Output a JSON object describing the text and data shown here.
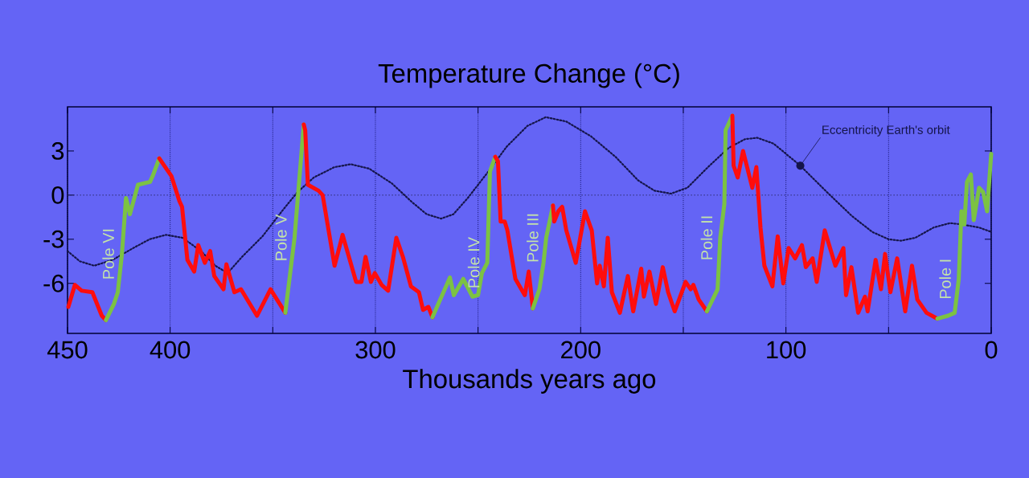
{
  "chart_data": {
    "type": "line",
    "title": "Temperature Change (°C)",
    "xlabel": "Thousands years ago",
    "xlim": [
      450,
      0
    ],
    "ylim": [
      -9.4,
      6
    ],
    "xticks": [
      450,
      400,
      {
        "value": 350,
        "label": null
      },
      300,
      {
        "value": 250,
        "label": null
      },
      200,
      {
        "value": 150,
        "label": null
      },
      100,
      {
        "value": 50,
        "label": null
      },
      0
    ],
    "yticks": [
      3,
      0,
      -3,
      -6
    ],
    "grid": "x",
    "ref_lines": [
      {
        "axis": "y",
        "value": 0,
        "color": "#2a2a6a",
        "line_style": "dotted"
      }
    ],
    "series": [
      {
        "name": "Eccentricity Earth's orbit",
        "color": "#15154a",
        "line_style": "dotted",
        "x": [
          450,
          444,
          437,
          428,
          418,
          410,
          402,
          394,
          385,
          378,
          372,
          365,
          355,
          345,
          338,
          330,
          320,
          312,
          303,
          292,
          282,
          275,
          268,
          262,
          255,
          245,
          236,
          226,
          217,
          207,
          195,
          183,
          172,
          164,
          156,
          148,
          138,
          128,
          120,
          114,
          106,
          93,
          80,
          68,
          58,
          50,
          44,
          37,
          28,
          20,
          14,
          6,
          0
        ],
        "values": [
          -3.8,
          -4.5,
          -4.8,
          -4.4,
          -3.6,
          -3.0,
          -2.7,
          -2.9,
          -3.8,
          -4.8,
          -5.3,
          -4.2,
          -2.8,
          -1.0,
          0.2,
          1.2,
          1.9,
          2.1,
          1.8,
          0.8,
          -0.5,
          -1.3,
          -1.6,
          -1.3,
          -0.2,
          1.6,
          3.3,
          4.7,
          5.3,
          5.0,
          4.0,
          2.6,
          1.0,
          0.3,
          0.1,
          0.5,
          1.9,
          3.2,
          3.8,
          3.9,
          3.5,
          2.0,
          0.2,
          -1.4,
          -2.5,
          -3.0,
          -3.1,
          -2.9,
          -2.2,
          -1.9,
          -2.0,
          -2.2,
          -2.5
        ]
      },
      {
        "color": "#ff0d0d",
        "x": [
          449.6,
          446.4,
          443.1,
          437.9,
          433.3,
          431.3
        ],
        "values": [
          -7.6,
          -6.1,
          -6.5,
          -6.6,
          -8.2,
          -8.5
        ]
      },
      {
        "color": "#7cc243",
        "x": [
          431.3,
          427.4,
          425.5,
          423.5,
          421.5,
          419.6,
          415.7,
          409.8,
          408.5,
          405.3
        ],
        "values": [
          -8.5,
          -7.4,
          -6.6,
          -4.0,
          -0.2,
          -1.3,
          0.7,
          0.9,
          1.3,
          2.5
        ]
      },
      {
        "color": "#ff0d0d",
        "x": [
          405.3,
          399.4,
          395.5,
          394.2,
          391.6,
          388.3,
          386.3,
          383.1,
          380.5,
          378.5,
          374,
          372.6,
          368.7,
          365.5,
          357.7,
          351.1,
          343.9
        ],
        "values": [
          2.5,
          1.3,
          -0.4,
          -0.8,
          -4.4,
          -5.2,
          -3.4,
          -4.6,
          -3.8,
          -5.5,
          -6.4,
          -4.7,
          -6.6,
          -6.4,
          -8.2,
          -6.4,
          -8.0
        ]
      },
      {
        "color": "#7cc243",
        "x": [
          343.9,
          339.4,
          334.9
        ],
        "values": [
          -8.0,
          -2.9,
          4.8
        ]
      },
      {
        "color": "#ff0d0d",
        "x": [
          334.9,
          334.2,
          332.9,
          327.7,
          325.7,
          319.9,
          316,
          309.4,
          306.8,
          304.8,
          302.2,
          300.3,
          297,
          293.8,
          289.8,
          286.6,
          282.7,
          278.8,
          276.8,
          274.2,
          272.2
        ],
        "values": [
          4.8,
          4.4,
          0.7,
          0.3,
          0.0,
          -4.8,
          -2.7,
          -5.9,
          -5.9,
          -4.2,
          -5.9,
          -5.3,
          -6.1,
          -6.5,
          -2.9,
          -4.2,
          -6.2,
          -6.6,
          -7.8,
          -7.6,
          -8.3
        ]
      },
      {
        "color": "#7cc243",
        "x": [
          272.2,
          263.7,
          261.8,
          257.2,
          252.7,
          250,
          248.1,
          245.5,
          244.2,
          241.6
        ],
        "values": [
          -8.3,
          -5.6,
          -6.8,
          -5.7,
          -6.9,
          -6.8,
          -5.3,
          -4.6,
          1.6,
          2.6
        ]
      },
      {
        "color": "#ff0d0d",
        "x": [
          241.6,
          240.3,
          239,
          237,
          235.7,
          231.8,
          227.2,
          225.3,
          223.3
        ],
        "values": [
          2.6,
          2.3,
          -1.8,
          -1.8,
          -2.4,
          -5.7,
          -6.8,
          -5.2,
          -7.7
        ]
      },
      {
        "color": "#7cc243",
        "x": [
          223.3,
          220.1,
          218.1,
          216.8,
          213.5
        ],
        "values": [
          -7.7,
          -6.4,
          -4.6,
          -2.9,
          -0.7
        ]
      },
      {
        "color": "#ff0d0d",
        "x": [
          213.5,
          212.9,
          210.9,
          209,
          207,
          202.4,
          197.9,
          194.6,
          192,
          190.7,
          188.7,
          186.8,
          184.8,
          180.9,
          177,
          174.4,
          170.5,
          169.2,
          166.5,
          163.3,
          160,
          157.4,
          154.2,
          148.9,
          146.4,
          145.1,
          142.5,
          138.5
        ],
        "values": [
          -0.7,
          -1.8,
          -1.1,
          -0.8,
          -2.4,
          -4.6,
          -1.1,
          -2.4,
          -6.0,
          -4.8,
          -6.2,
          -2.9,
          -6.6,
          -8.0,
          -5.5,
          -7.9,
          -5.0,
          -6.9,
          -5.2,
          -7.4,
          -4.9,
          -6.6,
          -7.9,
          -5.9,
          -6.4,
          -6.1,
          -7.1,
          -7.9
        ]
      },
      {
        "color": "#7cc243",
        "x": [
          138.5,
          133.3,
          132,
          130,
          129.4,
          126.1
        ],
        "values": [
          -7.9,
          -6.4,
          -2.9,
          -0.6,
          4.4,
          5.4
        ]
      },
      {
        "color": "#ff0d0d",
        "x": [
          126.1,
          125.5,
          123.5,
          120.9,
          116.4,
          114.4,
          112.4,
          110.5,
          106.6,
          104,
          101.3,
          98.7,
          95.5,
          92.2,
          90.3,
          87,
          85,
          81.1,
          75.9,
          72,
          70.7,
          68.1,
          64.8,
          61.5,
          60.2,
          56.3,
          53.7,
          51.7,
          49.1,
          45.8,
          41.9,
          38.6,
          36,
          31.5,
          26.2
        ],
        "values": [
          5.4,
          2.0,
          1.2,
          3.0,
          0.5,
          1.9,
          -2.2,
          -4.8,
          -6.2,
          -2.8,
          -6.0,
          -3.6,
          -4.3,
          -3.4,
          -4.9,
          -4.3,
          -5.9,
          -2.4,
          -4.8,
          -3.6,
          -6.8,
          -4.9,
          -8.0,
          -6.9,
          -7.9,
          -4.4,
          -6.4,
          -4.0,
          -6.6,
          -4.3,
          -7.9,
          -4.8,
          -7.1,
          -8.0,
          -8.4
        ]
      },
      {
        "color": "#7cc243",
        "x": [
          26.2,
          21,
          17.8,
          15.8,
          14.5,
          13.1,
          11.8,
          9.9,
          8.5,
          5.9,
          3.9,
          2,
          0
        ],
        "values": [
          -8.4,
          -8.2,
          -8.0,
          -5.7,
          -1.1,
          -2.0,
          0.9,
          1.4,
          -1.7,
          0.5,
          0.2,
          -1.1,
          2.8
        ]
      }
    ],
    "annotations": [
      {
        "text": "Pole VI",
        "x": 423.5,
        "y": -4.0
      },
      {
        "text": "Pole V",
        "x": 339.4,
        "y": -2.9
      },
      {
        "text": "Pole IV",
        "x": 245.5,
        "y": -4.6
      },
      {
        "text": "Pole III",
        "x": 216.8,
        "y": -2.9
      },
      {
        "text": "Pole II",
        "x": 132,
        "y": -2.9
      },
      {
        "text": "Pole I",
        "x": 15.8,
        "y": -5.7
      }
    ]
  }
}
